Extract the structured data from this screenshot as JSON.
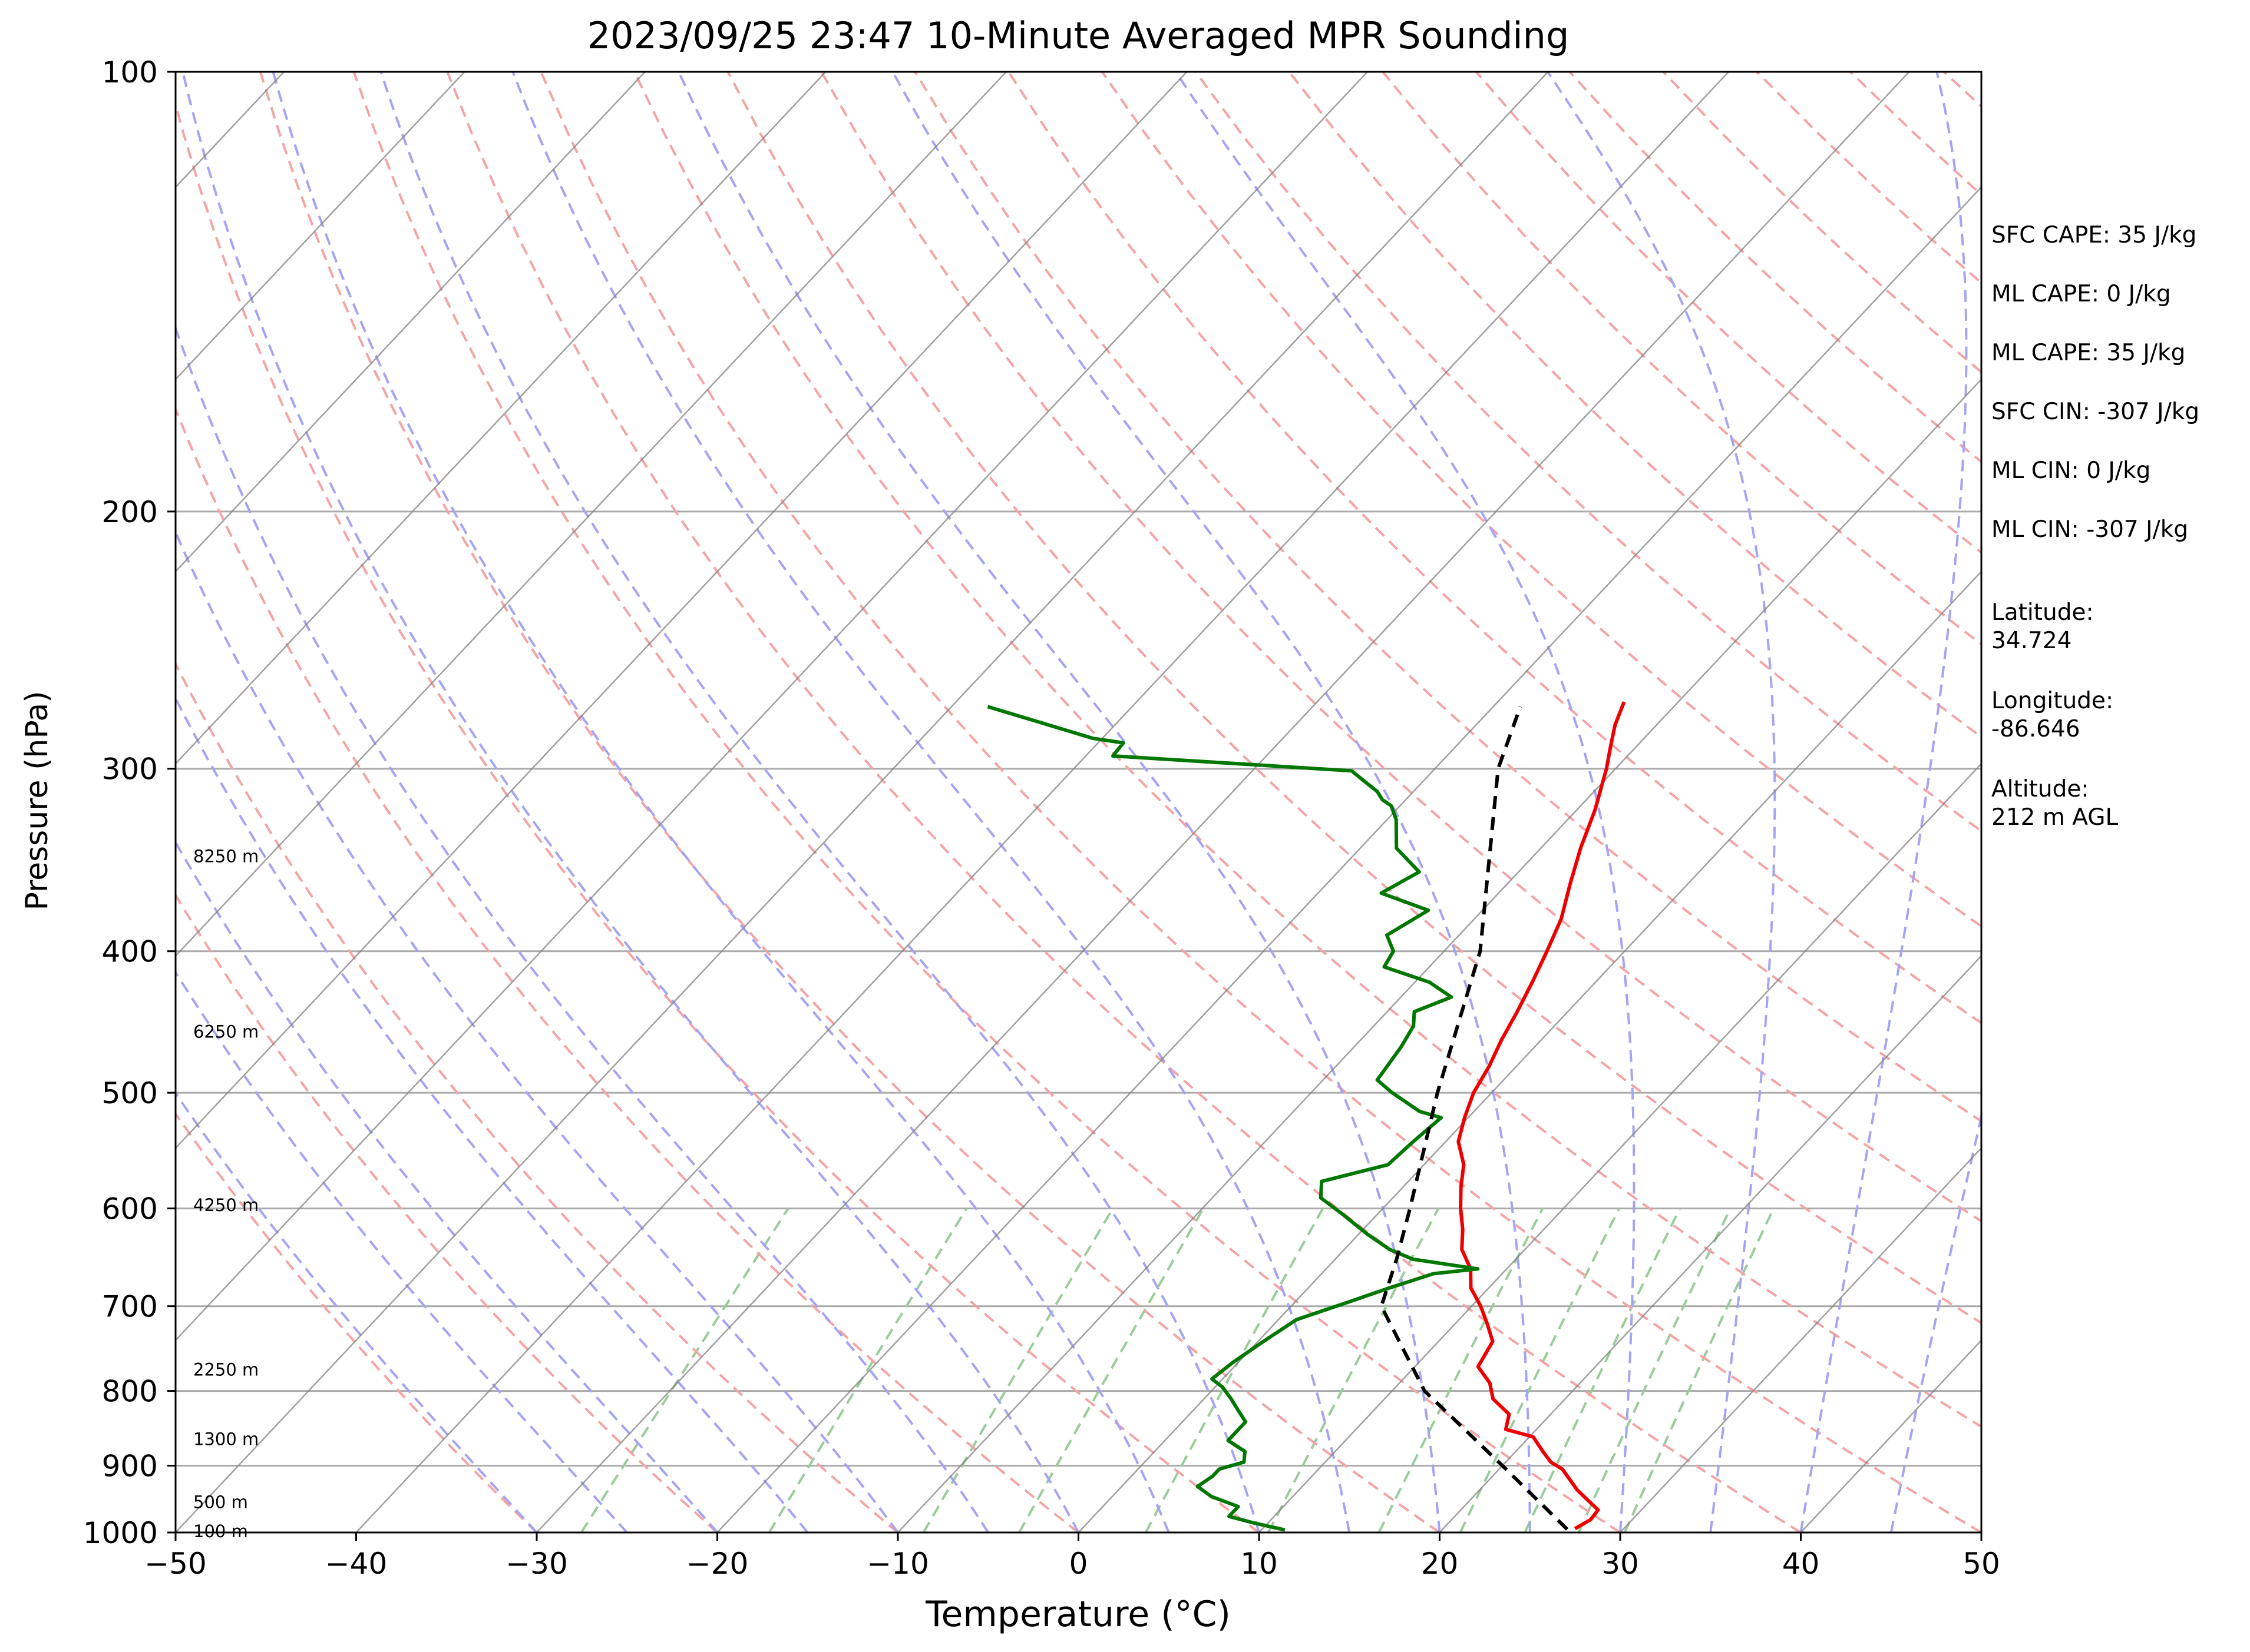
{
  "chart_data": {
    "type": "skew-t",
    "title": "2023/09/25 23:47 10-Minute Averaged MPR Sounding",
    "xlabel": "Temperature (°C)",
    "ylabel": "Pressure (hPa)",
    "xlim": [
      -50,
      50
    ],
    "ylim": [
      1000,
      100
    ],
    "y_scale": "log",
    "x_ticks": [
      -50,
      -40,
      -30,
      -20,
      -10,
      0,
      10,
      20,
      30,
      40,
      50
    ],
    "x_tick_labels": [
      "−50",
      "−40",
      "−30",
      "−20",
      "−10",
      "0",
      "10",
      "20",
      "30",
      "40",
      "50"
    ],
    "y_ticks": [
      1000,
      900,
      800,
      700,
      600,
      500,
      400,
      300,
      200,
      100
    ],
    "grid": "horizontal at pressure ticks",
    "colors": {
      "temperature": "#ee0000",
      "dewpoint": "#007700",
      "parcel": "#000000",
      "isotherms": "#808080",
      "dry_adiabats": "#f4a4a4",
      "moist_adiabats": "#a4a4f4",
      "mixing_ratio": "#99cc99"
    },
    "height_labels": [
      {
        "p": 1000,
        "text": "100 m"
      },
      {
        "p": 955,
        "text": "500 m"
      },
      {
        "p": 865,
        "text": "1300 m"
      },
      {
        "p": 775,
        "text": "2250 m"
      },
      {
        "p": 598,
        "text": "4250 m"
      },
      {
        "p": 455,
        "text": "6250 m"
      },
      {
        "p": 345,
        "text": "8250 m"
      }
    ],
    "annotations": [
      "SFC CAPE: 35 J/kg",
      "ML CAPE: 0 J/kg",
      "ML CAPE: 35 J/kg",
      "SFC CIN: -307 J/kg",
      "ML CIN: 0 J/kg",
      "ML CIN: -307 J/kg"
    ],
    "location": [
      {
        "label": "Latitude:",
        "value": "34.724"
      },
      {
        "label": "Longitude:",
        "value": "-86.646"
      },
      {
        "label": "Altitude:",
        "value": "212 m AGL"
      }
    ],
    "series": [
      {
        "key": "temperature",
        "points": [
          [
            994,
            27.3
          ],
          [
            980,
            27.7
          ],
          [
            965,
            27.6
          ],
          [
            950,
            26.5
          ],
          [
            935,
            25.4
          ],
          [
            905,
            23.5
          ],
          [
            895,
            22.5
          ],
          [
            880,
            21.5
          ],
          [
            860,
            20.2
          ],
          [
            850,
            18.3
          ],
          [
            830,
            17.7
          ],
          [
            810,
            16.0
          ],
          [
            790,
            15.0
          ],
          [
            770,
            13.5
          ],
          [
            740,
            13.0
          ],
          [
            720,
            11.8
          ],
          [
            700,
            10.5
          ],
          [
            680,
            9.0
          ],
          [
            660,
            8.0
          ],
          [
            640,
            6.5
          ],
          [
            620,
            5.5
          ],
          [
            600,
            4.3
          ],
          [
            580,
            3.2
          ],
          [
            560,
            2.2
          ],
          [
            540,
            0.7
          ],
          [
            520,
            -0.2
          ],
          [
            500,
            -1.0
          ],
          [
            480,
            -1.5
          ],
          [
            460,
            -2.2
          ],
          [
            440,
            -2.8
          ],
          [
            420,
            -3.5
          ],
          [
            400,
            -4.3
          ],
          [
            380,
            -5.2
          ],
          [
            360,
            -6.5
          ],
          [
            340,
            -7.8
          ],
          [
            320,
            -9.0
          ],
          [
            300,
            -10.5
          ],
          [
            290,
            -11.4
          ],
          [
            280,
            -12.3
          ],
          [
            270,
            -13.0
          ]
        ]
      },
      {
        "key": "dewpoint",
        "points": [
          [
            996,
            11.3
          ],
          [
            985,
            9.2
          ],
          [
            975,
            7.5
          ],
          [
            960,
            7.5
          ],
          [
            945,
            5.5
          ],
          [
            930,
            4.2
          ],
          [
            915,
            4.5
          ],
          [
            905,
            4.5
          ],
          [
            895,
            5.5
          ],
          [
            880,
            5.0
          ],
          [
            865,
            3.5
          ],
          [
            855,
            3.5
          ],
          [
            840,
            3.5
          ],
          [
            825,
            2.5
          ],
          [
            810,
            1.5
          ],
          [
            795,
            0.4
          ],
          [
            785,
            -0.6
          ],
          [
            765,
            -0.3
          ],
          [
            740,
            0.3
          ],
          [
            715,
            1.0
          ],
          [
            695,
            3.0
          ],
          [
            680,
            4.5
          ],
          [
            665,
            6.2
          ],
          [
            660,
            8.4
          ],
          [
            650,
            4.3
          ],
          [
            640,
            2.5
          ],
          [
            625,
            0.5
          ],
          [
            605,
            -2.0
          ],
          [
            590,
            -4.0
          ],
          [
            575,
            -4.8
          ],
          [
            560,
            -2.0
          ],
          [
            540,
            -1.8
          ],
          [
            520,
            -1.5
          ],
          [
            515,
            -3.0
          ],
          [
            500,
            -5.5
          ],
          [
            490,
            -7.0
          ],
          [
            465,
            -7.4
          ],
          [
            450,
            -7.8
          ],
          [
            440,
            -8.5
          ],
          [
            430,
            -7.2
          ],
          [
            420,
            -9.2
          ],
          [
            410,
            -12.5
          ],
          [
            400,
            -12.8
          ],
          [
            390,
            -14.0
          ],
          [
            375,
            -13.0
          ],
          [
            365,
            -16.5
          ],
          [
            353,
            -15.5
          ],
          [
            340,
            -18.0
          ],
          [
            325,
            -19.5
          ],
          [
            318,
            -20.5
          ],
          [
            315,
            -21.3
          ],
          [
            311,
            -22.0
          ],
          [
            305,
            -23.5
          ],
          [
            301,
            -24.5
          ],
          [
            294,
            -38.5
          ],
          [
            288,
            -38.6
          ],
          [
            286,
            -40.5
          ],
          [
            272,
            -48.0
          ]
        ]
      },
      {
        "key": "parcel",
        "points": [
          [
            995,
            26.9
          ],
          [
            900,
            20.0
          ],
          [
            800,
            11.8
          ],
          [
            700,
            5.0
          ],
          [
            650,
            3.4
          ],
          [
            600,
            1.5
          ],
          [
            500,
            -3.0
          ],
          [
            400,
            -8.0
          ],
          [
            300,
            -16.5
          ],
          [
            272,
            -18.5
          ]
        ]
      }
    ]
  }
}
